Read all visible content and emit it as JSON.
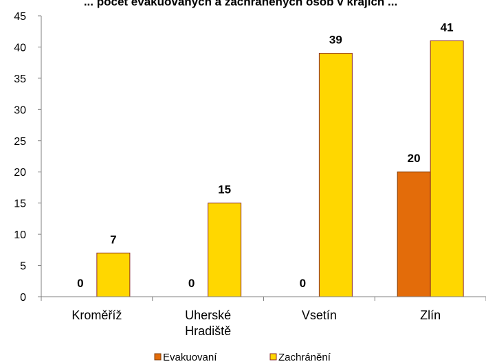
{
  "chart_data": {
    "type": "bar",
    "title": "... počet evakuovaných a zachráněných osob v krajích ...",
    "categories": [
      [
        "Kroměříž"
      ],
      [
        "Uherské",
        "Hradiště"
      ],
      [
        "Vsetín"
      ],
      [
        "Zlín"
      ]
    ],
    "series": [
      {
        "name": "Evakuovaní",
        "color": "#e36c0a",
        "values": [
          0,
          0,
          0,
          20
        ]
      },
      {
        "name": "Zachránění",
        "color": "#ffd700",
        "values": [
          7,
          15,
          39,
          41
        ]
      }
    ],
    "ylim": [
      0,
      45
    ],
    "yticks": [
      0,
      5,
      10,
      15,
      20,
      25,
      30,
      35,
      40,
      45
    ],
    "grid": false,
    "legend_position": "bottom"
  }
}
